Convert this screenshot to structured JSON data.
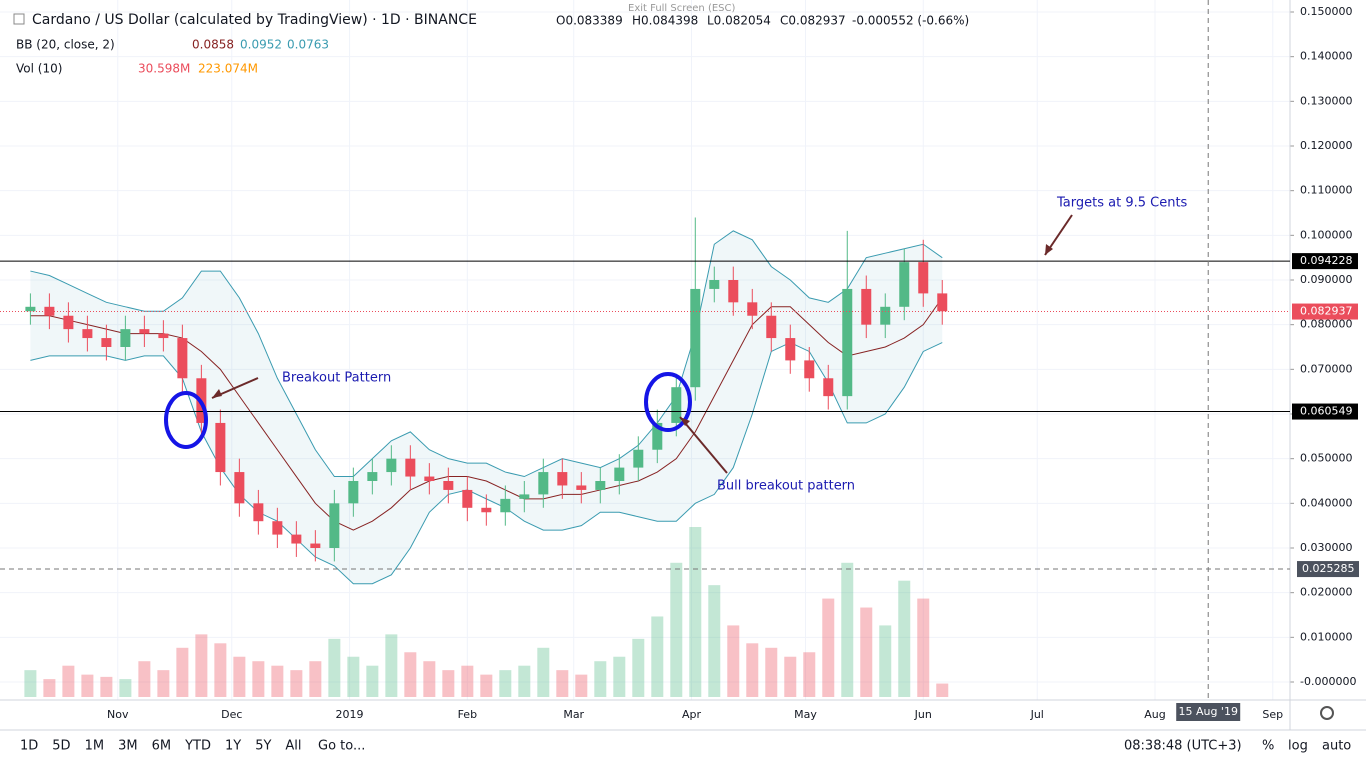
{
  "chart_data": {
    "type": "candlestick",
    "header": {
      "symbol": "Cardano / US Dollar (calculated by TradingView) · 1D · BINANCE",
      "ohlc": [
        "O0.083389",
        "H0.084398",
        "L0.082054",
        "C0.082937",
        "-0.000552 (-0.66%)"
      ],
      "bb_label": "BB (20, close, 2)",
      "bb_values": [
        "0.0858",
        "0.0952",
        "0.0763"
      ],
      "vol_label": "Vol (10)",
      "vol_values": [
        "30.598M",
        "223.074M"
      ]
    },
    "x": [
      8,
      13,
      18,
      23,
      28,
      33,
      38,
      43,
      48,
      53,
      58,
      63,
      68,
      73,
      78,
      83,
      88,
      93,
      98,
      103,
      108,
      113,
      118,
      123,
      128,
      133,
      138,
      143,
      148,
      153,
      158,
      163,
      168,
      173,
      178,
      183,
      188,
      193,
      198,
      203,
      208,
      213,
      218,
      223,
      228,
      233,
      238,
      243,
      248
    ],
    "open": [
      0.083,
      0.084,
      0.082,
      0.079,
      0.077,
      0.075,
      0.079,
      0.078,
      0.077,
      0.068,
      0.058,
      0.047,
      0.04,
      0.036,
      0.033,
      0.031,
      0.03,
      0.04,
      0.045,
      0.047,
      0.05,
      0.046,
      0.045,
      0.043,
      0.039,
      0.038,
      0.041,
      0.042,
      0.047,
      0.044,
      0.043,
      0.045,
      0.048,
      0.052,
      0.058,
      0.066,
      0.088,
      0.09,
      0.085,
      0.082,
      0.077,
      0.072,
      0.068,
      0.064,
      0.088,
      0.08,
      0.084,
      0.094,
      0.087
    ],
    "high": [
      0.087,
      0.087,
      0.085,
      0.082,
      0.08,
      0.082,
      0.082,
      0.081,
      0.08,
      0.071,
      0.061,
      0.05,
      0.043,
      0.039,
      0.036,
      0.034,
      0.043,
      0.048,
      0.05,
      0.053,
      0.053,
      0.049,
      0.048,
      0.046,
      0.042,
      0.044,
      0.045,
      0.05,
      0.05,
      0.047,
      0.048,
      0.051,
      0.055,
      0.061,
      0.069,
      0.104,
      0.093,
      0.093,
      0.088,
      0.085,
      0.08,
      0.075,
      0.071,
      0.101,
      0.091,
      0.087,
      0.097,
      0.099,
      0.09
    ],
    "low": [
      0.08,
      0.079,
      0.076,
      0.074,
      0.072,
      0.072,
      0.075,
      0.074,
      0.065,
      0.055,
      0.044,
      0.037,
      0.033,
      0.03,
      0.028,
      0.027,
      0.027,
      0.037,
      0.042,
      0.044,
      0.043,
      0.042,
      0.04,
      0.036,
      0.035,
      0.035,
      0.038,
      0.039,
      0.041,
      0.04,
      0.04,
      0.042,
      0.045,
      0.049,
      0.055,
      0.063,
      0.085,
      0.082,
      0.079,
      0.074,
      0.069,
      0.065,
      0.061,
      0.061,
      0.077,
      0.077,
      0.081,
      0.084,
      0.08
    ],
    "close": [
      0.084,
      0.082,
      0.079,
      0.077,
      0.075,
      0.079,
      0.078,
      0.077,
      0.068,
      0.058,
      0.047,
      0.04,
      0.036,
      0.033,
      0.031,
      0.03,
      0.04,
      0.045,
      0.047,
      0.05,
      0.046,
      0.045,
      0.043,
      0.039,
      0.038,
      0.041,
      0.042,
      0.047,
      0.044,
      0.043,
      0.045,
      0.048,
      0.052,
      0.058,
      0.066,
      0.088,
      0.09,
      0.085,
      0.082,
      0.077,
      0.072,
      0.068,
      0.064,
      0.088,
      0.08,
      0.084,
      0.094,
      0.087,
      0.083
    ],
    "volume": [
      60,
      40,
      70,
      50,
      45,
      40,
      80,
      60,
      110,
      140,
      120,
      90,
      80,
      70,
      60,
      80,
      130,
      90,
      70,
      140,
      100,
      80,
      60,
      70,
      50,
      60,
      70,
      110,
      60,
      50,
      80,
      90,
      130,
      180,
      300,
      380,
      250,
      160,
      120,
      110,
      90,
      100,
      220,
      300,
      200,
      160,
      260,
      220,
      30
    ],
    "bb_upper": [
      0.092,
      0.091,
      0.089,
      0.087,
      0.085,
      0.084,
      0.083,
      0.083,
      0.086,
      0.092,
      0.092,
      0.086,
      0.078,
      0.068,
      0.06,
      0.052,
      0.046,
      0.046,
      0.05,
      0.054,
      0.056,
      0.052,
      0.05,
      0.049,
      0.049,
      0.047,
      0.046,
      0.048,
      0.05,
      0.049,
      0.048,
      0.05,
      0.053,
      0.058,
      0.064,
      0.078,
      0.098,
      0.101,
      0.099,
      0.093,
      0.09,
      0.086,
      0.085,
      0.088,
      0.095,
      0.096,
      0.097,
      0.098,
      0.095
    ],
    "bb_middle": [
      0.082,
      0.082,
      0.081,
      0.08,
      0.079,
      0.078,
      0.078,
      0.078,
      0.077,
      0.074,
      0.07,
      0.064,
      0.058,
      0.052,
      0.046,
      0.04,
      0.036,
      0.034,
      0.036,
      0.039,
      0.043,
      0.045,
      0.046,
      0.046,
      0.045,
      0.043,
      0.041,
      0.041,
      0.042,
      0.042,
      0.043,
      0.044,
      0.045,
      0.047,
      0.05,
      0.056,
      0.064,
      0.072,
      0.08,
      0.084,
      0.084,
      0.08,
      0.076,
      0.073,
      0.074,
      0.075,
      0.077,
      0.08,
      0.086
    ],
    "bb_lower": [
      0.072,
      0.073,
      0.073,
      0.073,
      0.073,
      0.072,
      0.073,
      0.073,
      0.068,
      0.056,
      0.048,
      0.042,
      0.038,
      0.036,
      0.032,
      0.028,
      0.026,
      0.022,
      0.022,
      0.024,
      0.03,
      0.038,
      0.042,
      0.043,
      0.041,
      0.039,
      0.036,
      0.034,
      0.034,
      0.035,
      0.038,
      0.038,
      0.037,
      0.036,
      0.036,
      0.04,
      0.042,
      0.048,
      0.06,
      0.074,
      0.076,
      0.074,
      0.067,
      0.058,
      0.058,
      0.06,
      0.066,
      0.074,
      0.076
    ],
    "up_color": "#53b987",
    "down_color": "#eb4d5c",
    "band_color": "#3a9bb0",
    "middle_color": "#872323",
    "xlim": [
      0,
      339
    ],
    "xticks": [
      {
        "value": 31,
        "label": "Nov"
      },
      {
        "value": 61,
        "label": "Dec"
      },
      {
        "value": 92,
        "label": "2019"
      },
      {
        "value": 123,
        "label": "Feb"
      },
      {
        "value": 151,
        "label": "Mar"
      },
      {
        "value": 182,
        "label": "Apr"
      },
      {
        "value": 212,
        "label": "May"
      },
      {
        "value": 243,
        "label": "Jun"
      },
      {
        "value": 273,
        "label": "Jul"
      },
      {
        "value": 304,
        "label": "Aug"
      },
      {
        "value": 335,
        "label": "Sep"
      }
    ],
    "ylim": [
      0,
      0.15
    ],
    "yticks": [
      {
        "value": 0.15,
        "label": "0.150000"
      },
      {
        "value": 0.14,
        "label": "0.140000"
      },
      {
        "value": 0.13,
        "label": "0.130000"
      },
      {
        "value": 0.12,
        "label": "0.120000"
      },
      {
        "value": 0.11,
        "label": "0.110000"
      },
      {
        "value": 0.1,
        "label": "0.100000"
      },
      {
        "value": 0.09,
        "label": "0.090000"
      },
      {
        "value": 0.08,
        "label": "0.080000"
      },
      {
        "value": 0.07,
        "label": "0.070000"
      },
      {
        "value": 0.06,
        "label": "0.060000"
      },
      {
        "value": 0.05,
        "label": "0.050000"
      },
      {
        "value": 0.04,
        "label": "0.040000"
      },
      {
        "value": 0.03,
        "label": "0.030000"
      },
      {
        "value": 0.02,
        "label": "0.020000"
      },
      {
        "value": 0.01,
        "label": "0.010000"
      },
      {
        "value": 0,
        "label": "-0.000000"
      }
    ],
    "hlines": [
      0.094228,
      0.060549
    ],
    "last_price": 0.082937,
    "crosshair": {
      "y": 0.025285,
      "x": 318,
      "x_label": "15 Aug '19"
    },
    "grid": true,
    "annotations": [
      "Targets at 9.5 Cents",
      "Breakout Pattern",
      "Bull breakout pattern"
    ]
  },
  "exit_hint": "Exit Full Screen (ESC)",
  "toolbar": {
    "ranges": [
      "1D",
      "5D",
      "1M",
      "3M",
      "6M",
      "YTD",
      "1Y",
      "5Y",
      "All"
    ],
    "goto": "Go to...",
    "clock": "08:38:48 (UTC+3)",
    "options": [
      "%",
      "log",
      "auto"
    ]
  }
}
